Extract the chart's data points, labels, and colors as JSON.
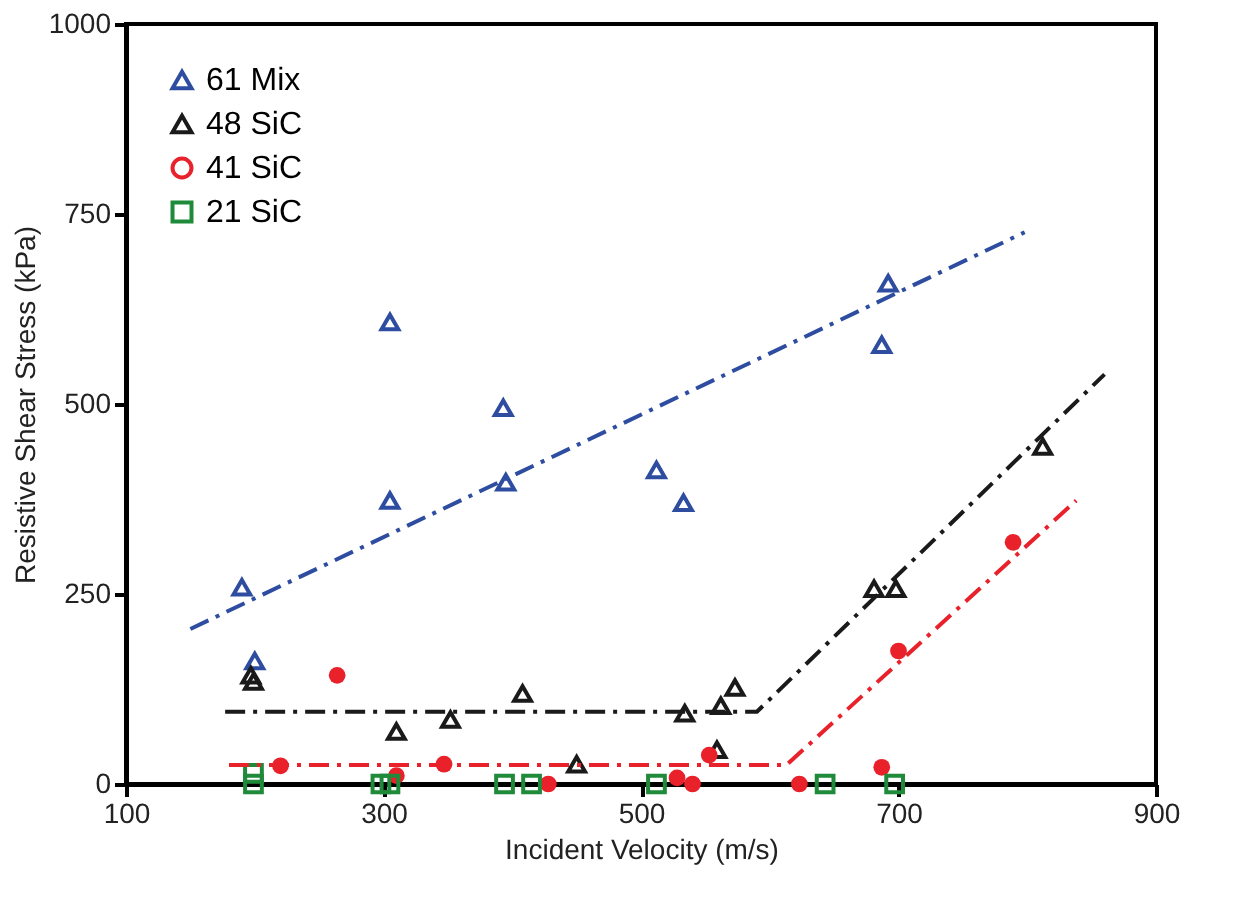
{
  "chart_data": {
    "type": "scatter",
    "xlabel": "Incident Velocity (m/s)",
    "ylabel": "Resistive Shear Stress (kPa)",
    "xlim": [
      100,
      900
    ],
    "xticks": [
      100,
      300,
      500,
      700,
      900
    ],
    "ylim": [
      0,
      1000
    ],
    "yticks": [
      0,
      250,
      500,
      750,
      1000
    ],
    "grid": false,
    "legend": "top left",
    "series": [
      {
        "name": "61 Mix",
        "color": "#2e4da0",
        "marker": "triangle",
        "x": [
          190,
          200,
          305,
          305,
          393,
          395,
          512,
          533,
          687,
          692
        ],
        "values": [
          259,
          162,
          608,
          373,
          495,
          397,
          413,
          370,
          578,
          659
        ]
      },
      {
        "name": "48 SiC",
        "color": "#1a1a1a",
        "marker": "triangle",
        "x": [
          197,
          199,
          310,
          352,
          408,
          450,
          534,
          559,
          562,
          573,
          681,
          698,
          812
        ],
        "values": [
          143,
          135,
          69,
          85,
          119,
          26,
          93,
          45,
          103,
          127,
          257,
          257,
          444
        ]
      },
      {
        "name": "41 SiC",
        "color": "#e8212a",
        "marker": "circle",
        "x": [
          220,
          264,
          310,
          347,
          428,
          528,
          540,
          553,
          623,
          687,
          700,
          789
        ],
        "values": [
          24,
          143,
          11,
          26,
          0,
          8,
          0,
          38,
          0,
          22,
          175,
          318
        ]
      },
      {
        "name": "21 SiC",
        "color": "#1f8a3a",
        "marker": "square",
        "x": [
          199,
          199,
          298,
          305,
          394,
          415,
          512,
          643,
          697
        ],
        "values": [
          14,
          0,
          0,
          0,
          0,
          0,
          0,
          0,
          0
        ]
      },
      {
        "type": "line",
        "color": "#2e4da0",
        "line_style": "dashed",
        "x": [
          150,
          798
        ],
        "values": [
          204,
          726
        ]
      },
      {
        "type": "line",
        "color": "#1a1a1a",
        "line_style": "dashed",
        "x": [
          177,
          590,
          860
        ],
        "values": [
          95,
          95,
          539
        ]
      },
      {
        "type": "line",
        "color": "#e8212a",
        "line_style": "dashed",
        "x": [
          180,
          613,
          838
        ],
        "values": [
          25,
          25,
          373
        ]
      }
    ]
  }
}
